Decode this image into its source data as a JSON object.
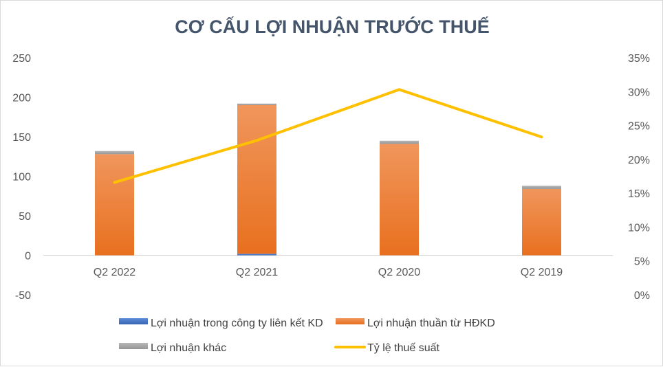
{
  "chart_data": {
    "type": "bar",
    "title": "CƠ CẤU LỢI NHUẬN TRƯỚC THUẾ",
    "categories": [
      "Q2 2022",
      "Q2 2021",
      "Q2 2020",
      "Q2 2019"
    ],
    "stacked": true,
    "series": [
      {
        "name": "Lợi nhuận trong công ty liên kết KD",
        "type": "bar",
        "axis": "left",
        "color": "#4472c4",
        "values": [
          0,
          2,
          0,
          0
        ]
      },
      {
        "name": "Lợi nhuận thuần từ HĐKD",
        "type": "bar",
        "axis": "left",
        "color": "#ed7d31",
        "values": [
          128,
          188,
          141,
          84
        ]
      },
      {
        "name": "Lợi nhuận khác",
        "type": "bar",
        "axis": "left",
        "color": "#a5a5a5",
        "values": [
          4,
          2,
          4,
          4
        ]
      },
      {
        "name": "Tỷ lệ thuế suất",
        "type": "line",
        "axis": "right",
        "color": "#ffc000",
        "values": [
          0.166,
          0.228,
          0.303,
          0.233
        ]
      }
    ],
    "yleft": {
      "min": -50,
      "max": 250,
      "step": 50,
      "ticks": [
        "250",
        "200",
        "150",
        "100",
        "50",
        "0",
        "-50"
      ]
    },
    "yright": {
      "min": 0,
      "max": 0.35,
      "step": 0.05,
      "ticks": [
        "35%",
        "30%",
        "25%",
        "20%",
        "15%",
        "10%",
        "5%",
        "0%"
      ]
    },
    "grid": false,
    "legend_position": "bottom"
  }
}
